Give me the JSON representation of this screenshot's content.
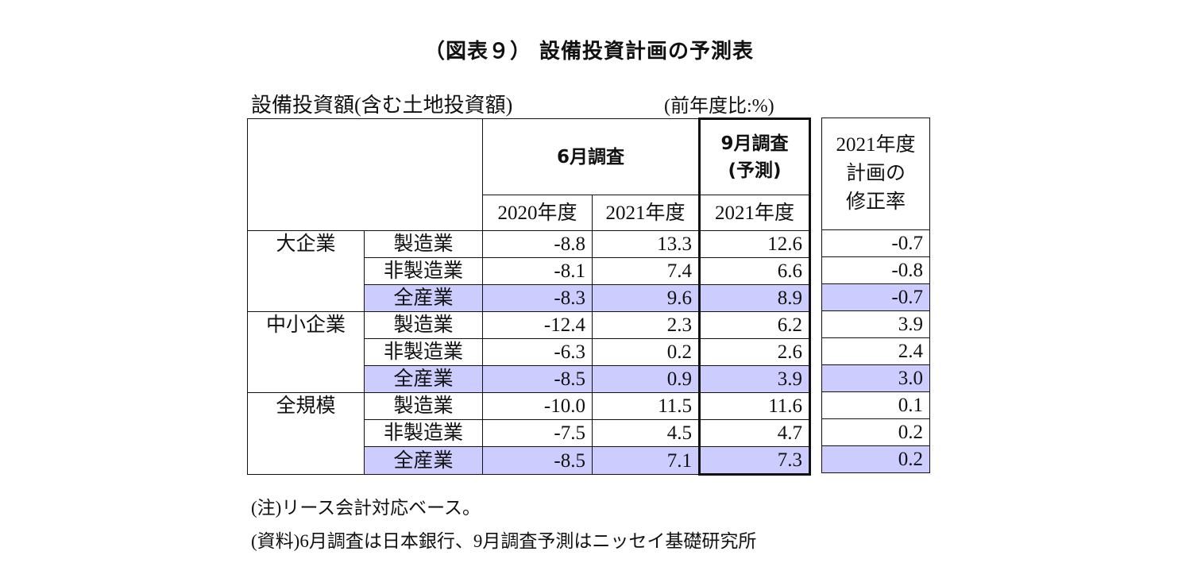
{
  "title": "（図表９） 設備投資計画の予測表",
  "subtitle_left": "設備投資額(含む土地投資額)",
  "subtitle_right": "(前年度比:%)",
  "header": {
    "june_survey": "6月調査",
    "sept_survey_line1": "9月調査",
    "sept_survey_line2": "(予測)",
    "fy2020": "2020年度",
    "fy2021a": "2021年度",
    "fy2021b": "2021年度",
    "revision_line1": "2021年度",
    "revision_line2": "計画の",
    "revision_line3": "修正率"
  },
  "highlight_color": "#ccccff",
  "groups": [
    {
      "name": "大企業",
      "rows": [
        {
          "sector": "製造業",
          "jun2020": "-8.8",
          "jun2021": "13.3",
          "sep2021": "12.6",
          "rev": "-0.7",
          "highlight": false
        },
        {
          "sector": "非製造業",
          "jun2020": "-8.1",
          "jun2021": "7.4",
          "sep2021": "6.6",
          "rev": "-0.8",
          "highlight": false
        },
        {
          "sector": "全産業",
          "jun2020": "-8.3",
          "jun2021": "9.6",
          "sep2021": "8.9",
          "rev": "-0.7",
          "highlight": true
        }
      ]
    },
    {
      "name": "中小企業",
      "rows": [
        {
          "sector": "製造業",
          "jun2020": "-12.4",
          "jun2021": "2.3",
          "sep2021": "6.2",
          "rev": "3.9",
          "highlight": false
        },
        {
          "sector": "非製造業",
          "jun2020": "-6.3",
          "jun2021": "0.2",
          "sep2021": "2.6",
          "rev": "2.4",
          "highlight": false
        },
        {
          "sector": "全産業",
          "jun2020": "-8.5",
          "jun2021": "0.9",
          "sep2021": "3.9",
          "rev": "3.0",
          "highlight": true
        }
      ]
    },
    {
      "name": "全規模",
      "rows": [
        {
          "sector": "製造業",
          "jun2020": "-10.0",
          "jun2021": "11.5",
          "sep2021": "11.6",
          "rev": "0.1",
          "highlight": false
        },
        {
          "sector": "非製造業",
          "jun2020": "-7.5",
          "jun2021": "4.5",
          "sep2021": "4.7",
          "rev": "0.2",
          "highlight": false
        },
        {
          "sector": "全産業",
          "jun2020": "-8.5",
          "jun2021": "7.1",
          "sep2021": "7.3",
          "rev": "0.2",
          "highlight": true
        }
      ]
    }
  ],
  "notes": {
    "note": "(注)リース会計対応ベース。",
    "source": "(資料)6月調査は日本銀行、9月調査予測はニッセイ基礎研究所"
  }
}
